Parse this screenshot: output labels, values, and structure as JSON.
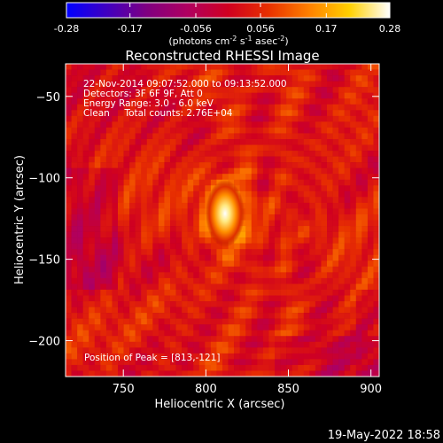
{
  "chart_data": {
    "type": "heatmap",
    "title": "Reconstructed RHESSI Image",
    "colorbar": {
      "tick_labels": [
        "-0.28",
        "-0.17",
        "-0.056",
        "0.056",
        "0.17",
        "0.28"
      ],
      "ticks": [
        -0.28,
        -0.17,
        -0.056,
        0.056,
        0.17,
        0.28
      ],
      "range": [
        -0.28,
        0.28
      ],
      "units_parts": [
        "(photons cm",
        "-2",
        " s",
        "-1",
        " asec",
        "-2",
        ")"
      ],
      "colormap": [
        "#0000ff",
        "#4000c0",
        "#800080",
        "#b00060",
        "#d00020",
        "#e83000",
        "#ff8000",
        "#ffd000",
        "#ffffff"
      ]
    },
    "xlabel": "Heliocentric X (arcsec)",
    "ylabel": "Heliocentric Y (arcsec)",
    "xlim": [
      715,
      905
    ],
    "ylim": [
      -222,
      -30
    ],
    "xticks": [
      750,
      800,
      850,
      900
    ],
    "yticks": [
      -50,
      -100,
      -150,
      -200
    ],
    "xtick_labels": [
      "750",
      "800",
      "850",
      "900"
    ],
    "ytick_labels": [
      "−50",
      "−100",
      "−150",
      "−200"
    ],
    "annotations": [
      "22-Nov-2014 09:07:52.000 to 09:13:52.000",
      "Detectors: 3F 6F 9F, Att 0",
      "Energy Range: 3.0 - 6.0 keV",
      "Clean     Total counts: 2.76E+04"
    ],
    "peak_label": "Position of Peak = [813,-121]",
    "peak": [
      813,
      -121
    ],
    "timestamp": "19-May-2022 18:58"
  }
}
